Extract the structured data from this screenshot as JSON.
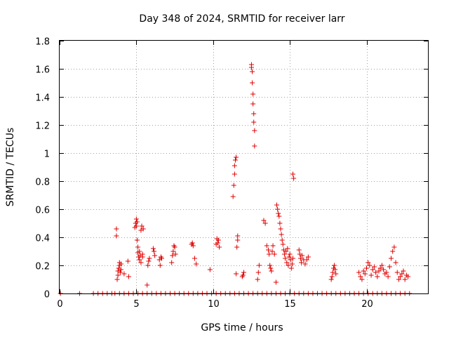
{
  "chart_data": {
    "type": "scatter",
    "title": "Day 348 of 2024, SRMTID for receiver larr",
    "xlabel": "GPS time / hours",
    "ylabel": "SRMTID / TECUs",
    "xlim": [
      0,
      24
    ],
    "ylim": [
      0,
      1.8
    ],
    "xticks": [
      0,
      5,
      10,
      15,
      20
    ],
    "yticks": [
      0,
      0.2,
      0.4,
      0.6,
      0.8,
      1,
      1.2,
      1.4,
      1.6,
      1.8
    ],
    "ytick_labels": [
      "0",
      "0.2",
      "0.4",
      "0.6",
      "0.8",
      "1",
      "1.2",
      "1.4",
      "1.6",
      "1.8"
    ],
    "grid": true,
    "marker": "+",
    "color": "#e00000",
    "series": [
      {
        "name": "larr",
        "x": [
          0.05,
          1.3,
          2.2,
          2.5,
          2.8,
          3.1,
          3.4,
          3.6,
          3.9,
          4.2,
          4.5,
          4.8,
          5.1,
          5.4,
          5.7,
          6.0,
          6.3,
          6.6,
          6.9,
          7.2,
          7.5,
          7.8,
          8.1,
          8.4,
          8.7,
          9.0,
          9.3,
          9.6,
          9.9,
          10.2,
          10.5,
          10.8,
          11.1,
          11.4,
          11.7,
          12.0,
          12.3,
          12.6,
          12.9,
          13.2,
          13.5,
          13.8,
          14.1,
          14.4,
          14.7,
          15.0,
          15.3,
          15.6,
          15.9,
          16.2,
          16.5,
          16.8,
          17.1,
          17.4,
          17.7,
          18.0,
          18.3,
          18.6,
          18.9,
          19.2,
          19.5,
          19.8,
          20.1,
          20.4,
          20.7,
          21.0,
          21.3,
          21.6,
          21.9,
          22.2,
          22.5,
          22.8,
          3.7,
          3.7,
          3.75,
          3.8,
          3.8,
          3.85,
          3.9,
          3.9,
          3.95,
          4.0,
          4.0,
          4.2,
          4.45,
          4.5,
          4.9,
          4.95,
          5.0,
          5.0,
          5.05,
          5.05,
          5.1,
          5.1,
          5.15,
          5.2,
          5.2,
          5.25,
          5.3,
          5.3,
          5.35,
          5.4,
          5.4,
          5.45,
          5.7,
          5.75,
          5.8,
          5.85,
          6.1,
          6.15,
          6.2,
          6.5,
          6.55,
          6.6,
          6.65,
          7.3,
          7.35,
          7.4,
          7.45,
          7.5,
          7.55,
          8.6,
          8.65,
          8.7,
          8.8,
          8.9,
          9.8,
          10.2,
          10.25,
          10.3,
          10.35,
          10.4,
          11.3,
          11.35,
          11.4,
          11.4,
          11.45,
          11.5,
          11.5,
          11.55,
          11.6,
          11.6,
          11.9,
          11.95,
          12.0,
          12.5,
          12.5,
          12.55,
          12.55,
          12.6,
          12.6,
          12.65,
          12.65,
          12.7,
          12.7,
          12.9,
          12.95,
          13.0,
          13.3,
          13.4,
          13.5,
          13.6,
          13.65,
          13.7,
          13.75,
          13.8,
          13.85,
          13.9,
          14.0,
          14.1,
          14.15,
          14.2,
          14.25,
          14.3,
          14.35,
          14.4,
          14.45,
          14.5,
          14.55,
          14.6,
          14.65,
          14.7,
          14.75,
          14.8,
          14.85,
          14.9,
          14.95,
          15.0,
          15.05,
          15.1,
          15.15,
          15.2,
          15.2,
          15.25,
          15.6,
          15.65,
          15.7,
          15.75,
          15.8,
          15.9,
          16.0,
          16.1,
          16.2,
          17.7,
          17.75,
          17.8,
          17.85,
          17.9,
          17.95,
          18.0,
          19.5,
          19.6,
          19.7,
          19.8,
          19.9,
          20.0,
          20.1,
          20.2,
          20.3,
          20.4,
          20.5,
          20.6,
          20.7,
          20.8,
          20.9,
          21.0,
          21.1,
          21.2,
          21.3,
          21.4,
          21.5,
          21.6,
          21.7,
          21.8,
          21.9,
          22.0,
          22.1,
          22.2,
          22.3,
          22.4,
          22.5,
          22.6,
          22.7
        ],
        "y": [
          0,
          0,
          0,
          0,
          0,
          0,
          0,
          0,
          0,
          0,
          0,
          0,
          0,
          0,
          0,
          0,
          0,
          0,
          0,
          0,
          0,
          0,
          0,
          0,
          0,
          0,
          0,
          0,
          0,
          0,
          0,
          0,
          0,
          0,
          0,
          0,
          0,
          0,
          0,
          0,
          0,
          0,
          0,
          0,
          0,
          0,
          0,
          0,
          0,
          0,
          0,
          0,
          0,
          0,
          0,
          0,
          0,
          0,
          0,
          0,
          0,
          0,
          0,
          0,
          0,
          0,
          0,
          0,
          0,
          0,
          0,
          0,
          0.46,
          0.41,
          0.1,
          0.13,
          0.16,
          0.18,
          0.2,
          0.22,
          0.15,
          0.17,
          0.21,
          0.14,
          0.23,
          0.12,
          0.47,
          0.5,
          0.53,
          0.48,
          0.51,
          0.38,
          0.33,
          0.29,
          0.26,
          0.3,
          0.24,
          0.27,
          0.22,
          0.45,
          0.48,
          0.26,
          0.28,
          0.46,
          0.06,
          0.2,
          0.23,
          0.25,
          0.32,
          0.3,
          0.27,
          0.24,
          0.2,
          0.26,
          0.25,
          0.22,
          0.27,
          0.3,
          0.34,
          0.33,
          0.28,
          0.35,
          0.36,
          0.34,
          0.25,
          0.21,
          0.17,
          0.35,
          0.39,
          0.36,
          0.38,
          0.33,
          0.69,
          0.77,
          0.85,
          0.91,
          0.95,
          0.97,
          0.14,
          0.33,
          0.38,
          0.41,
          0.12,
          0.13,
          0.15,
          1.63,
          1.61,
          1.58,
          1.5,
          1.42,
          1.35,
          1.28,
          1.22,
          1.16,
          1.05,
          0.1,
          0.15,
          0.2,
          0.52,
          0.5,
          0.34,
          0.31,
          0.28,
          0.2,
          0.18,
          0.16,
          0.3,
          0.34,
          0.28,
          0.08,
          0.63,
          0.6,
          0.57,
          0.55,
          0.5,
          0.46,
          0.42,
          0.38,
          0.35,
          0.31,
          0.28,
          0.25,
          0.3,
          0.22,
          0.32,
          0.2,
          0.26,
          0.28,
          0.24,
          0.18,
          0.21,
          0.25,
          0.85,
          0.82,
          0.31,
          0.28,
          0.25,
          0.22,
          0.27,
          0.24,
          0.21,
          0.24,
          0.26,
          0.1,
          0.12,
          0.15,
          0.18,
          0.2,
          0.17,
          0.14,
          0.15,
          0.12,
          0.1,
          0.16,
          0.14,
          0.18,
          0.22,
          0.2,
          0.13,
          0.17,
          0.19,
          0.15,
          0.12,
          0.16,
          0.18,
          0.2,
          0.17,
          0.14,
          0.15,
          0.12,
          0.19,
          0.25,
          0.3,
          0.33,
          0.22,
          0.15,
          0.1,
          0.12,
          0.14,
          0.16,
          0.1,
          0.13,
          0.12
        ]
      }
    ]
  }
}
